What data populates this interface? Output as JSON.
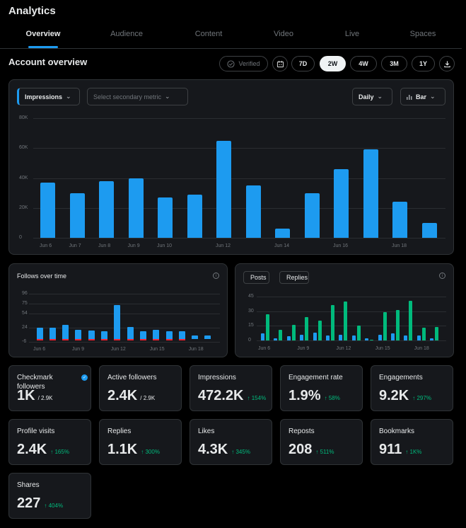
{
  "app": {
    "title": "Analytics"
  },
  "tabs": [
    {
      "label": "Overview",
      "active": true
    },
    {
      "label": "Audience"
    },
    {
      "label": "Content"
    },
    {
      "label": "Video"
    },
    {
      "label": "Live"
    },
    {
      "label": "Spaces"
    }
  ],
  "overview": {
    "title": "Account overview",
    "verified_label": "Verified",
    "ranges": [
      "7D",
      "2W",
      "4W",
      "3M",
      "1Y"
    ],
    "selected_range": "2W",
    "icons": {
      "calendar": "calendar-icon",
      "download": "download-icon",
      "verified": "check-circle-icon"
    }
  },
  "main_chart": {
    "primary_metric": "Impressions",
    "secondary_placeholder": "Select secondary metric",
    "granularity": "Daily",
    "chart_style": "Bar",
    "colors": {
      "bar": "#1d9bf0",
      "accent": "#1d9bf0"
    }
  },
  "follows_card": {
    "title": "Follows over time",
    "colors": {
      "gain": "#1d9bf0",
      "loss": "#f4212e"
    }
  },
  "posts_card": {
    "posts_label": "Posts",
    "replies_label": "Replies",
    "colors": {
      "posts": "#1d9bf0",
      "replies": "#00ba7c"
    }
  },
  "chart_data": [
    {
      "type": "bar",
      "x_ticks": [
        "Jun 6",
        "Jun 7",
        "Jun 8",
        "Jun 9",
        "Jun 10",
        "Jun 12",
        "Jun 14",
        "Jun 16",
        "Jun 18"
      ],
      "y_ticks": [
        "80K",
        "60K",
        "40K",
        "20K",
        "0"
      ],
      "ylim": [
        0,
        80000
      ],
      "series": [
        {
          "name": "Impressions",
          "values": [
            37000,
            30000,
            38000,
            40000,
            27000,
            29000,
            65000,
            35000,
            6000,
            30000,
            46000,
            59000,
            24000,
            10000
          ]
        }
      ]
    },
    {
      "type": "bar",
      "x_ticks": [
        "Jun 6",
        "Jun 9",
        "Jun 12",
        "Jun 15",
        "Jun 18"
      ],
      "y_ticks": [
        "96",
        "75",
        "54",
        "24",
        "-6"
      ],
      "ylim": [
        -6,
        96
      ],
      "series": [
        {
          "values": [
            24,
            24,
            30,
            20,
            18,
            17,
            72,
            26,
            17,
            19,
            17,
            16,
            8,
            7
          ]
        },
        {
          "values": [
            -1,
            -1,
            -1,
            -1,
            -1,
            -1,
            -3,
            -1,
            -1,
            -1,
            -2,
            -3,
            0,
            0
          ]
        }
      ]
    },
    {
      "type": "bar",
      "x_ticks": [
        "Jun 6",
        "Jun 9",
        "Jun 12",
        "Jun 15",
        "Jun 18"
      ],
      "y_ticks": [
        "45",
        "30",
        "15",
        "0"
      ],
      "ylim": [
        0,
        45
      ],
      "series": [
        {
          "name": "Posts",
          "values": [
            7,
            2,
            4,
            6,
            8,
            5,
            6,
            5,
            2,
            6,
            7,
            5,
            5,
            2
          ]
        },
        {
          "name": "Replies",
          "values": [
            27,
            11,
            16,
            24,
            20,
            36,
            40,
            15,
            1,
            29,
            31,
            41,
            13,
            14
          ]
        }
      ]
    }
  ],
  "stats": [
    {
      "label": "Checkmark followers",
      "value": "1K",
      "sub": "/ 2.9K",
      "badge": "verified-badge-icon"
    },
    {
      "label": "Active followers",
      "value": "2.4K",
      "sub": "/ 2.9K"
    },
    {
      "label": "Impressions",
      "value": "472.2K",
      "change": "↑ 154%"
    },
    {
      "label": "Engagement rate",
      "value": "1.9%",
      "change": "↑ 58%"
    },
    {
      "label": "Engagements",
      "value": "9.2K",
      "change": "↑ 297%"
    },
    {
      "label": "Profile visits",
      "value": "2.4K",
      "change": "↑ 165%"
    },
    {
      "label": "Replies",
      "value": "1.1K",
      "change": "↑ 300%"
    },
    {
      "label": "Likes",
      "value": "4.3K",
      "change": "↑ 345%"
    },
    {
      "label": "Reposts",
      "value": "208",
      "change": "↑ 511%"
    },
    {
      "label": "Bookmarks",
      "value": "911",
      "change": "↑ 1K%"
    },
    {
      "label": "Shares",
      "value": "227",
      "change": "↑ 404%"
    }
  ]
}
